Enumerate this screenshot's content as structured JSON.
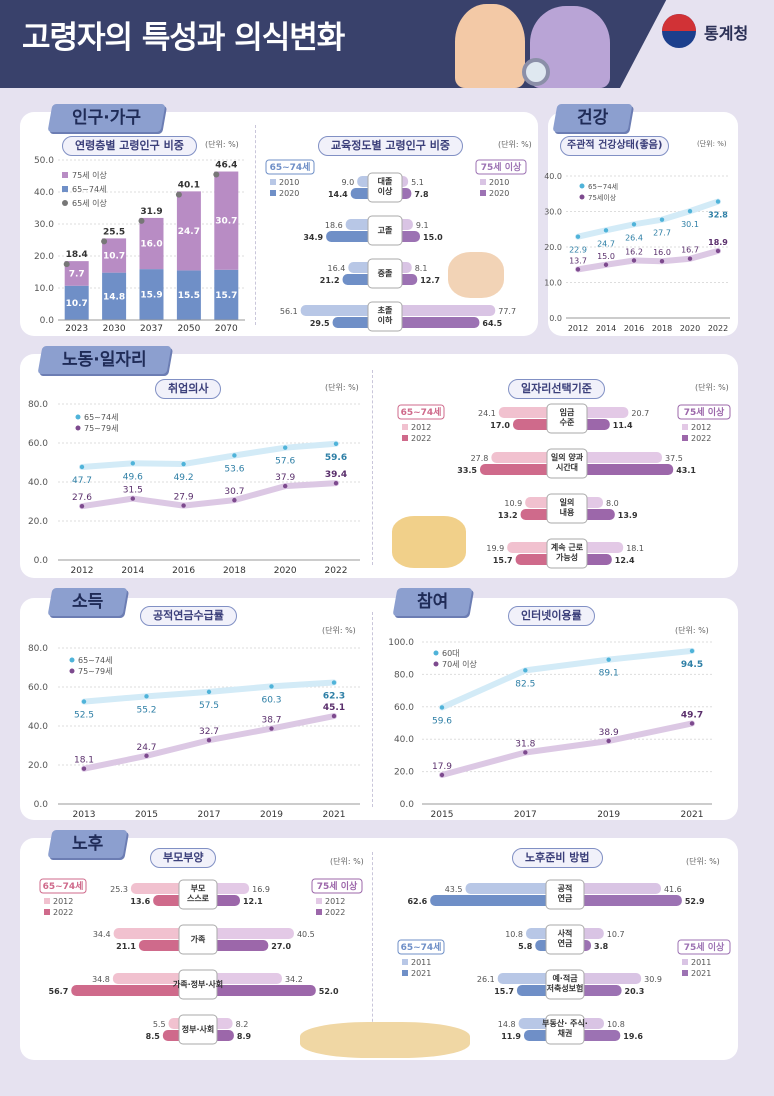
{
  "header": {
    "title": "고령자의 특성과 의식변화",
    "org": "통계청"
  },
  "sections": [
    {
      "id": "pop",
      "label": "인구·가구"
    },
    {
      "id": "health",
      "label": "건강"
    },
    {
      "id": "labor",
      "label": "노동·일자리"
    },
    {
      "id": "income",
      "label": "소득"
    },
    {
      "id": "participation",
      "label": "참여"
    },
    {
      "id": "retire",
      "label": "노후"
    }
  ],
  "colors": {
    "navy": "#39416b",
    "teal": "#3ba7c9",
    "purple": "#7d4a8e",
    "pink": "#c8688f",
    "lightblue": "#cfe8f5",
    "lightpurple": "#dcc9e3",
    "stack_blue": "#6f8fc7",
    "stack_purple": "#b88cc4"
  },
  "chart_data": [
    {
      "id": "pop_age",
      "type": "bar",
      "stacked": true,
      "title": "연령층별 고령인구 비중",
      "unit": "(단위: %)",
      "categories": [
        "2023",
        "2030",
        "2037",
        "2050",
        "2070"
      ],
      "series": [
        {
          "name": "65~74세",
          "values": [
            10.7,
            14.8,
            15.9,
            15.5,
            15.7
          ]
        },
        {
          "name": "75세 이상",
          "values": [
            7.7,
            10.7,
            16.0,
            24.7,
            30.7
          ]
        }
      ],
      "totals_name": "65세 이상",
      "totals": [
        18.4,
        25.5,
        31.9,
        40.1,
        46.4
      ],
      "yticks": [
        "0.0",
        "10.0",
        "20.0",
        "30.0",
        "40.0",
        "50.0"
      ],
      "ylim": [
        0,
        50
      ]
    },
    {
      "id": "edu",
      "type": "bar",
      "orientation": "butterfly",
      "title": "교육정도별 고령인구 비중",
      "unit": "(단위: %)",
      "left_group": "65~74세",
      "right_group": "75세 이상",
      "years": [
        "2010",
        "2020"
      ],
      "categories": [
        "대졸 이상",
        "고졸",
        "중졸",
        "초졸 이하"
      ],
      "left": {
        "2010": [
          9.0,
          18.6,
          16.4,
          56.1
        ],
        "2020": [
          14.4,
          34.9,
          21.2,
          29.5
        ]
      },
      "right": {
        "2010": [
          5.1,
          9.1,
          8.1,
          77.7
        ],
        "2020": [
          7.8,
          15.0,
          12.7,
          64.5
        ]
      }
    },
    {
      "id": "health_self",
      "type": "line",
      "title": "주관적 건강상태(좋음)",
      "unit": "(단위: %)",
      "x": [
        "2012",
        "2014",
        "2016",
        "2018",
        "2020",
        "2022"
      ],
      "series": [
        {
          "name": "65~74세",
          "values": [
            22.9,
            24.7,
            26.4,
            27.7,
            30.1,
            32.8
          ]
        },
        {
          "name": "75세이상",
          "values": [
            13.7,
            15.0,
            16.2,
            16.0,
            16.7,
            18.9
          ]
        }
      ],
      "yticks": [
        "0.0",
        "10.0",
        "20.0",
        "30.0",
        "40.0"
      ],
      "ylim": [
        0,
        40
      ]
    },
    {
      "id": "work_will",
      "type": "line",
      "title": "취업의사",
      "unit": "(단위: %)",
      "x": [
        "2012",
        "2014",
        "2016",
        "2018",
        "2020",
        "2022"
      ],
      "series": [
        {
          "name": "65~74세",
          "values": [
            47.7,
            49.6,
            49.2,
            53.6,
            57.6,
            59.6
          ]
        },
        {
          "name": "75~79세",
          "values": [
            27.6,
            31.5,
            27.9,
            30.7,
            37.9,
            39.4
          ]
        }
      ],
      "yticks": [
        "0.0",
        "20.0",
        "40.0",
        "60.0",
        "80.0"
      ],
      "ylim": [
        0,
        80
      ]
    },
    {
      "id": "job_criteria",
      "type": "bar",
      "orientation": "butterfly",
      "title": "일자리선택기준",
      "unit": "(단위: %)",
      "left_group": "65~74세",
      "right_group": "75세 이상",
      "years": [
        "2012",
        "2022"
      ],
      "categories": [
        "임금 수준",
        "일의 양과 시간대",
        "일의 내용",
        "계속 근로 가능성"
      ],
      "left": {
        "2012": [
          24.1,
          27.8,
          10.9,
          19.9
        ],
        "2022": [
          17.0,
          33.5,
          13.2,
          15.7
        ]
      },
      "right": {
        "2012": [
          20.7,
          37.5,
          8.0,
          18.1
        ],
        "2022": [
          11.4,
          43.1,
          13.9,
          12.4
        ]
      }
    },
    {
      "id": "pension",
      "type": "line",
      "title": "공적연금수급률",
      "unit": "(단위: %)",
      "x": [
        "2013",
        "2015",
        "2017",
        "2019",
        "2021"
      ],
      "series": [
        {
          "name": "65~74세",
          "values": [
            52.5,
            55.2,
            57.5,
            60.3,
            62.3
          ]
        },
        {
          "name": "75~79세",
          "values": [
            18.1,
            24.7,
            32.7,
            38.7,
            45.1
          ]
        }
      ],
      "yticks": [
        "0.0",
        "20.0",
        "40.0",
        "60.0",
        "80.0"
      ],
      "ylim": [
        0,
        80
      ]
    },
    {
      "id": "internet",
      "type": "line",
      "title": "인터넷이용률",
      "unit": "(단위: %)",
      "x": [
        "2015",
        "2017",
        "2019",
        "2021"
      ],
      "series": [
        {
          "name": "60대",
          "values": [
            59.6,
            82.5,
            89.1,
            94.5
          ]
        },
        {
          "name": "70세 이상",
          "values": [
            17.9,
            31.8,
            38.9,
            49.7
          ]
        }
      ],
      "yticks": [
        "0.0",
        "20.0",
        "40.0",
        "60.0",
        "80.0",
        "100.0"
      ],
      "ylim": [
        0,
        100
      ]
    },
    {
      "id": "parent_support",
      "type": "bar",
      "orientation": "butterfly",
      "title": "부모부양",
      "unit": "(단위: %)",
      "left_group": "65~74세",
      "right_group": "75세 이상",
      "years": [
        "2012",
        "2022"
      ],
      "categories": [
        "부모 스스로",
        "가족",
        "가족·정부·사회",
        "정부·사회"
      ],
      "left": {
        "2012": [
          25.3,
          34.4,
          34.8,
          5.5
        ],
        "2022": [
          13.6,
          21.1,
          56.7,
          8.5
        ]
      },
      "right": {
        "2012": [
          16.9,
          40.5,
          34.2,
          8.2
        ],
        "2022": [
          12.1,
          27.0,
          52.0,
          8.9
        ]
      }
    },
    {
      "id": "retire_prep",
      "type": "bar",
      "orientation": "butterfly",
      "title": "노후준비 방법",
      "unit": "(단위: %)",
      "left_group": "65~74세",
      "right_group": "75세 이상",
      "years": [
        "2011",
        "2021"
      ],
      "categories": [
        "공적 연금",
        "사적 연금",
        "예·적금 저축성보험",
        "부동산· 주식· 채권"
      ],
      "left": {
        "2011": [
          43.5,
          10.8,
          26.1,
          14.8
        ],
        "2021": [
          62.6,
          5.8,
          15.7,
          11.9
        ]
      },
      "right": {
        "2011": [
          41.6,
          10.7,
          30.9,
          10.8
        ],
        "2021": [
          52.9,
          3.8,
          20.3,
          19.6
        ]
      }
    }
  ]
}
